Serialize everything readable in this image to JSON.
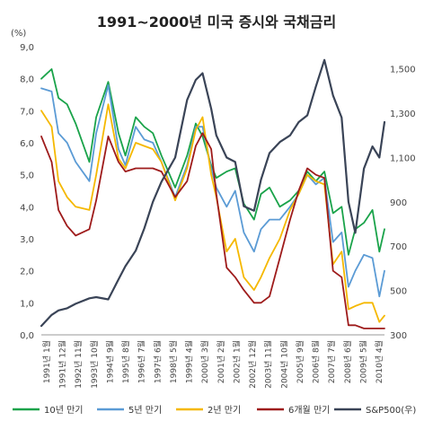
{
  "chart_data": {
    "type": "line",
    "title": "1991~2000년 미국 증시와 국채금리",
    "y_left_unit": "(%)",
    "y_left_range": [
      0,
      9
    ],
    "y_left_ticks": [
      "0,0",
      "1,0",
      "2,0",
      "3,0",
      "4,0",
      "5,0",
      "6,0",
      "7,0",
      "8,0",
      "9,0"
    ],
    "y_right_range": [
      300,
      1600
    ],
    "y_right_ticks": [
      "300",
      "500",
      "700",
      "900",
      "1,100",
      "1,300",
      "1,500"
    ],
    "x_range": [
      1991.0,
      2011.0
    ],
    "x_tick_labels": [
      "1991년 1월",
      "1991년 12월",
      "1992년 11월",
      "1993년 10월",
      "1994년 9월",
      "1995년 8월",
      "1996년 7월",
      "1997년 6월",
      "1998년 5월",
      "1999년 4월",
      "2000년 3월",
      "2001년 2월",
      "2002년 1월",
      "2002년 12월",
      "2003년 11월",
      "2004년 10월",
      "2005년 9월",
      "2006년 8월",
      "2007년 7월",
      "2008년 6월",
      "2009년 5월",
      "2010년 4월"
    ],
    "grid": false,
    "legend_position": "bottom",
    "series": [
      {
        "name": "10년 만기",
        "axis": "left",
        "color": "#1aa34a",
        "x": [
          1991.0,
          1991.6,
          1992.0,
          1992.5,
          1993.0,
          1993.8,
          1994.2,
          1994.9,
          1995.5,
          1995.9,
          1996.5,
          1997.0,
          1997.5,
          1998.0,
          1998.8,
          1999.5,
          2000.0,
          2000.4,
          2000.9,
          2001.2,
          2001.8,
          2002.3,
          2002.8,
          2003.4,
          2003.8,
          2004.3,
          2004.9,
          2005.5,
          2006.0,
          2006.5,
          2007.0,
          2007.5,
          2008.0,
          2008.5,
          2008.9,
          2009.3,
          2009.8,
          2010.3,
          2010.7,
          2011.0
        ],
        "y": [
          8.0,
          8.3,
          7.4,
          7.2,
          6.6,
          5.4,
          6.8,
          7.9,
          6.3,
          5.6,
          6.8,
          6.5,
          6.3,
          5.6,
          4.6,
          5.6,
          6.6,
          6.2,
          5.3,
          4.9,
          5.1,
          5.2,
          4.1,
          3.6,
          4.4,
          4.6,
          4.0,
          4.2,
          4.5,
          5.1,
          4.8,
          5.1,
          3.8,
          4.0,
          2.5,
          3.3,
          3.5,
          3.9,
          2.6,
          3.3
        ]
      },
      {
        "name": "5년 만기",
        "axis": "left",
        "color": "#5b9bd5",
        "x": [
          1991.0,
          1991.6,
          1992.0,
          1992.5,
          1993.0,
          1993.8,
          1994.2,
          1994.9,
          1995.5,
          1995.9,
          1996.5,
          1997.0,
          1997.5,
          1998.0,
          1998.8,
          1999.5,
          2000.0,
          2000.4,
          2000.9,
          2001.2,
          2001.8,
          2002.3,
          2002.8,
          2003.4,
          2003.8,
          2004.3,
          2004.9,
          2005.5,
          2006.0,
          2006.5,
          2007.0,
          2007.5,
          2008.0,
          2008.5,
          2008.9,
          2009.3,
          2009.8,
          2010.3,
          2010.7,
          2011.0
        ],
        "y": [
          7.7,
          7.6,
          6.3,
          6.0,
          5.4,
          4.8,
          6.3,
          7.8,
          5.8,
          5.3,
          6.5,
          6.1,
          6.0,
          5.4,
          4.3,
          5.3,
          6.5,
          6.5,
          5.2,
          4.6,
          4.0,
          4.5,
          3.2,
          2.6,
          3.3,
          3.6,
          3.6,
          4.0,
          4.4,
          5.0,
          4.7,
          4.9,
          2.9,
          3.2,
          1.5,
          2.0,
          2.5,
          2.4,
          1.2,
          2.0
        ]
      },
      {
        "name": "2년 만기",
        "axis": "left",
        "color": "#f5b800",
        "x": [
          1991.0,
          1991.6,
          1992.0,
          1992.5,
          1993.0,
          1993.8,
          1994.2,
          1994.9,
          1995.5,
          1995.9,
          1996.5,
          1997.0,
          1997.5,
          1998.0,
          1998.8,
          1999.5,
          2000.0,
          2000.4,
          2000.9,
          2001.2,
          2001.8,
          2002.3,
          2002.8,
          2003.4,
          2003.8,
          2004.3,
          2004.9,
          2005.5,
          2006.0,
          2006.5,
          2007.0,
          2007.5,
          2008.0,
          2008.5,
          2008.9,
          2009.3,
          2009.8,
          2010.3,
          2010.7,
          2011.0
        ],
        "y": [
          7.0,
          6.5,
          4.8,
          4.3,
          4.0,
          3.9,
          5.0,
          7.2,
          5.5,
          5.2,
          6.0,
          5.9,
          5.8,
          5.4,
          4.2,
          5.2,
          6.4,
          6.8,
          5.0,
          4.3,
          2.6,
          3.0,
          1.8,
          1.4,
          1.8,
          2.4,
          3.0,
          3.9,
          4.4,
          5.0,
          4.8,
          4.7,
          2.2,
          2.6,
          0.8,
          0.9,
          1.0,
          1.0,
          0.4,
          0.6
        ]
      },
      {
        "name": "6개월 만기",
        "axis": "left",
        "color": "#9e1b1b",
        "x": [
          1991.0,
          1991.6,
          1992.0,
          1992.5,
          1993.0,
          1993.8,
          1994.2,
          1994.9,
          1995.5,
          1995.9,
          1996.5,
          1997.0,
          1997.5,
          1998.0,
          1998.8,
          1999.5,
          2000.0,
          2000.4,
          2000.9,
          2001.2,
          2001.8,
          2002.3,
          2002.8,
          2003.4,
          2003.8,
          2004.3,
          2004.9,
          2005.5,
          2006.0,
          2006.5,
          2007.0,
          2007.5,
          2008.0,
          2008.5,
          2008.9,
          2009.3,
          2009.8,
          2010.3,
          2010.7,
          2011.0
        ],
        "y": [
          6.2,
          5.4,
          3.9,
          3.4,
          3.1,
          3.3,
          4.2,
          6.2,
          5.4,
          5.1,
          5.2,
          5.2,
          5.2,
          5.1,
          4.3,
          4.8,
          5.9,
          6.3,
          5.8,
          4.4,
          2.1,
          1.8,
          1.4,
          1.0,
          1.0,
          1.2,
          2.4,
          3.6,
          4.5,
          5.2,
          5.0,
          4.9,
          2.0,
          1.8,
          0.3,
          0.3,
          0.2,
          0.2,
          0.2,
          0.2
        ]
      },
      {
        "name": "S&P500(우)",
        "axis": "right",
        "color": "#3a4457",
        "x": [
          1991.0,
          1991.6,
          1992.0,
          1992.5,
          1993.0,
          1993.8,
          1994.2,
          1994.9,
          1995.5,
          1995.9,
          1996.5,
          1997.0,
          1997.5,
          1998.0,
          1998.8,
          1999.5,
          2000.0,
          2000.4,
          2000.9,
          2001.2,
          2001.8,
          2002.3,
          2002.8,
          2003.4,
          2003.8,
          2004.3,
          2004.9,
          2005.5,
          2006.0,
          2006.5,
          2007.0,
          2007.5,
          2008.0,
          2008.5,
          2008.9,
          2009.3,
          2009.8,
          2010.3,
          2010.7,
          2011.0
        ],
        "y": [
          340,
          390,
          410,
          420,
          440,
          465,
          470,
          460,
          550,
          610,
          680,
          780,
          900,
          990,
          1100,
          1360,
          1450,
          1480,
          1320,
          1200,
          1100,
          1080,
          880,
          860,
          1000,
          1120,
          1170,
          1200,
          1260,
          1290,
          1420,
          1540,
          1380,
          1280,
          900,
          760,
          1050,
          1150,
          1100,
          1260
        ]
      }
    ]
  }
}
